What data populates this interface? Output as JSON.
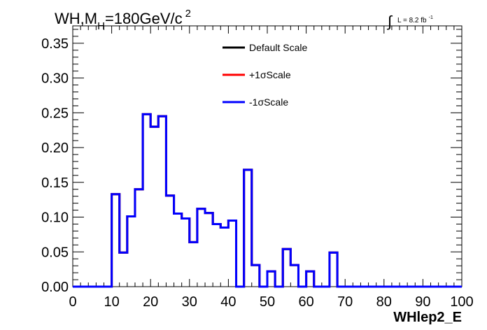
{
  "chart_data": {
    "type": "step",
    "title_parts": {
      "main": "WH,M",
      "sub": "H",
      "rest": "=180GeV/c",
      "sup": "2"
    },
    "lumi_parts": {
      "integral": "∫",
      "text": "L = 8.2 fb",
      "sup": "-1"
    },
    "xlabel": "WHlep2_E",
    "ylabel": "",
    "xlim": [
      0,
      100
    ],
    "ylim": [
      0,
      0.375
    ],
    "x_ticks": [
      "0",
      "10",
      "20",
      "30",
      "40",
      "50",
      "60",
      "70",
      "80",
      "90",
      "100"
    ],
    "y_ticks": [
      "0.00",
      "0.05",
      "0.10",
      "0.15",
      "0.20",
      "0.25",
      "0.30",
      "0.35"
    ],
    "bin_width": 2,
    "bin_edges_start": 0,
    "series": [
      {
        "name": "Default Scale",
        "color": "#000000",
        "values": [
          0,
          0,
          0,
          0,
          0,
          0.133,
          0.049,
          0.101,
          0.14,
          0.248,
          0.23,
          0.245,
          0.131,
          0.105,
          0.098,
          0.064,
          0.112,
          0.106,
          0.09,
          0.085,
          0.095,
          0,
          0.168,
          0.031,
          0,
          0.022,
          0,
          0.054,
          0.031,
          0,
          0.022,
          0,
          0,
          0.049,
          0,
          0,
          0,
          0,
          0,
          0,
          0,
          0,
          0,
          0,
          0,
          0,
          0,
          0,
          0,
          0
        ]
      },
      {
        "name": "+1σScale",
        "color": "#ff0000",
        "values": [
          0,
          0,
          0,
          0,
          0,
          0.133,
          0.049,
          0.101,
          0.14,
          0.248,
          0.23,
          0.245,
          0.131,
          0.105,
          0.098,
          0.064,
          0.112,
          0.106,
          0.09,
          0.085,
          0.095,
          0,
          0.168,
          0.031,
          0,
          0.022,
          0,
          0.054,
          0.031,
          0,
          0.022,
          0,
          0,
          0.049,
          0,
          0,
          0,
          0,
          0,
          0,
          0,
          0,
          0,
          0,
          0,
          0,
          0,
          0,
          0,
          0
        ]
      },
      {
        "name": "-1σScale",
        "color": "#0000ff",
        "values": [
          0,
          0,
          0,
          0,
          0,
          0.133,
          0.049,
          0.101,
          0.14,
          0.248,
          0.23,
          0.245,
          0.131,
          0.105,
          0.098,
          0.064,
          0.112,
          0.106,
          0.09,
          0.085,
          0.095,
          0,
          0.168,
          0.031,
          0,
          0.022,
          0,
          0.054,
          0.031,
          0,
          0.022,
          0,
          0,
          0.049,
          0,
          0,
          0,
          0,
          0,
          0,
          0,
          0,
          0,
          0,
          0,
          0,
          0,
          0,
          0,
          0
        ]
      }
    ],
    "legend_position": "top-center"
  }
}
